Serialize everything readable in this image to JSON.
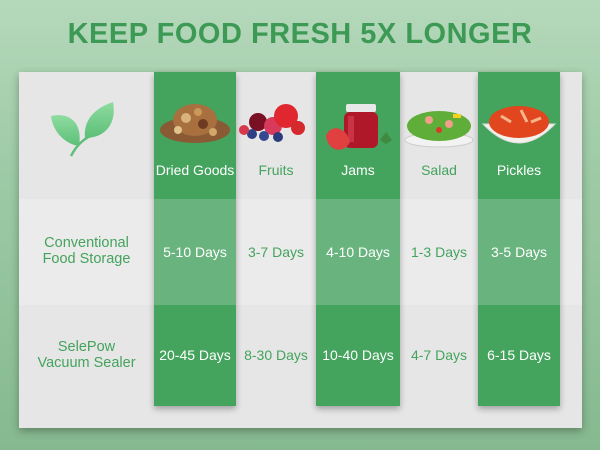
{
  "title": "KEEP FOOD FRESH 5X LONGER",
  "rows": [
    "Conventional Food Storage",
    "SelePow Vacuum Sealer"
  ],
  "row_lines": [
    [
      "Conventional",
      "Food Storage"
    ],
    [
      "SelePow",
      "Vacuum Sealer"
    ]
  ],
  "columns": [
    {
      "name": "Dried Goods",
      "conventional": "5-10 Days",
      "vacuum": "20-45 Days",
      "icon": "dried-goods-image"
    },
    {
      "name": "Fruits",
      "conventional": "3-7 Days",
      "vacuum": "8-30 Days",
      "icon": "fruits-image"
    },
    {
      "name": "Jams",
      "conventional": "4-10 Days",
      "vacuum": "10-40 Days",
      "icon": "jam-jar-image"
    },
    {
      "name": "Salad",
      "conventional": "1-3 Days",
      "vacuum": "4-7 Days",
      "icon": "salad-image"
    },
    {
      "name": "Pickles",
      "conventional": "3-5 Days",
      "vacuum": "6-15 Days",
      "icon": "pickles-image"
    }
  ],
  "colors": {
    "green": "#44a35d",
    "light_green": "#69b47e",
    "panel": "#e6e6e6"
  }
}
